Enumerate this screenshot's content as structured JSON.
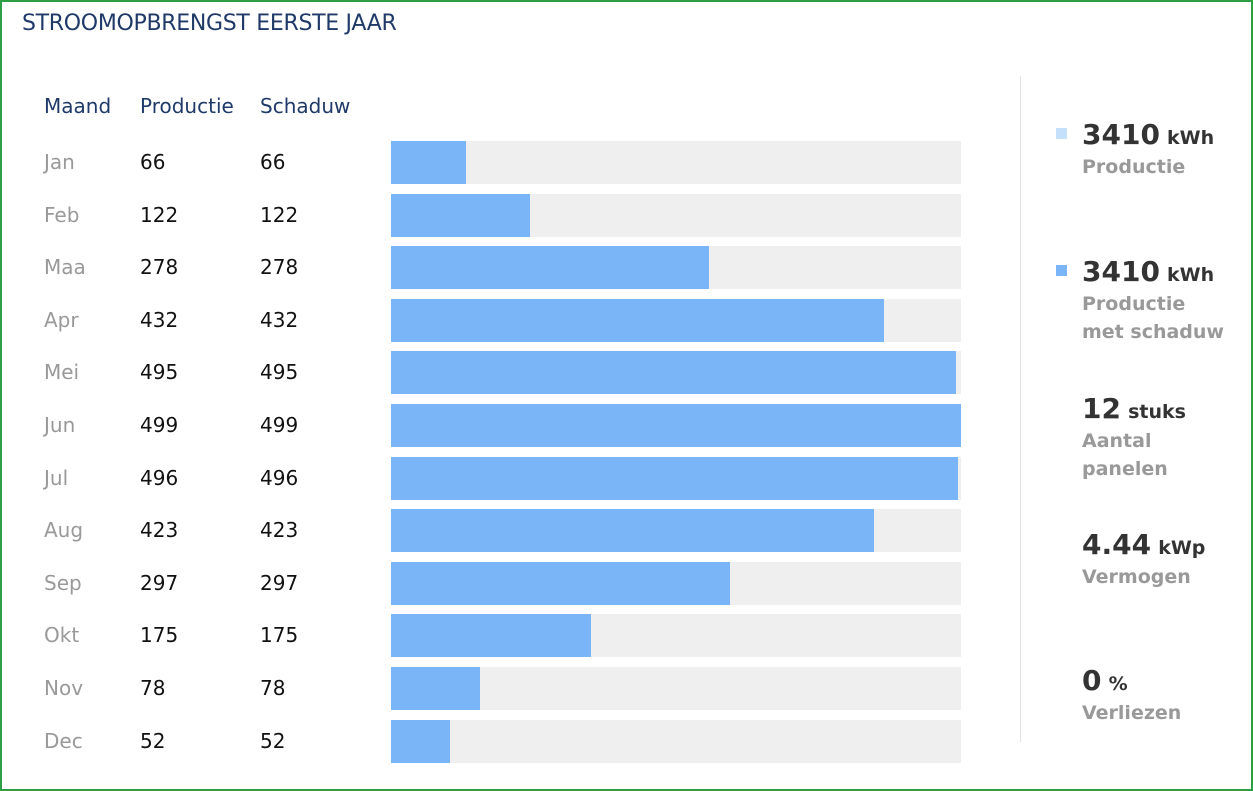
{
  "title": "STROOMOPBRENGST EERSTE JAAR",
  "columns": {
    "month": "Maand",
    "production": "Productie",
    "shadow": "Schaduw"
  },
  "colors": {
    "bar": "#7ab5f8",
    "track": "#efefef",
    "production_swatch": "#c5e0fa",
    "shadow_swatch": "#7ab5f8",
    "title": "#1f3a68"
  },
  "chart_data": {
    "type": "bar",
    "orientation": "horizontal",
    "categories": [
      "Jan",
      "Feb",
      "Maa",
      "Apr",
      "Mei",
      "Jun",
      "Jul",
      "Aug",
      "Sep",
      "Okt",
      "Nov",
      "Dec"
    ],
    "series": [
      {
        "name": "Productie",
        "values": [
          66,
          122,
          278,
          432,
          495,
          499,
          496,
          423,
          297,
          175,
          78,
          52
        ]
      },
      {
        "name": "Schaduw",
        "values": [
          66,
          122,
          278,
          432,
          495,
          499,
          496,
          423,
          297,
          175,
          78,
          52
        ]
      }
    ],
    "xlim": [
      0,
      499
    ],
    "grid": false
  },
  "stats": [
    {
      "value": "3410",
      "unit": "kWh",
      "label_lines": [
        "Productie"
      ],
      "swatch": "production"
    },
    {
      "value": "3410",
      "unit": "kWh",
      "label_lines": [
        "Productie",
        "met schaduw"
      ],
      "swatch": "shadow"
    },
    {
      "value": "12",
      "unit": "stuks",
      "label_lines": [
        "Aantal",
        "panelen"
      ]
    },
    {
      "value": "4.44",
      "unit": "kWp",
      "label_lines": [
        "Vermogen"
      ]
    },
    {
      "value": "0",
      "unit": "%",
      "label_lines": [
        "Verliezen"
      ]
    }
  ]
}
